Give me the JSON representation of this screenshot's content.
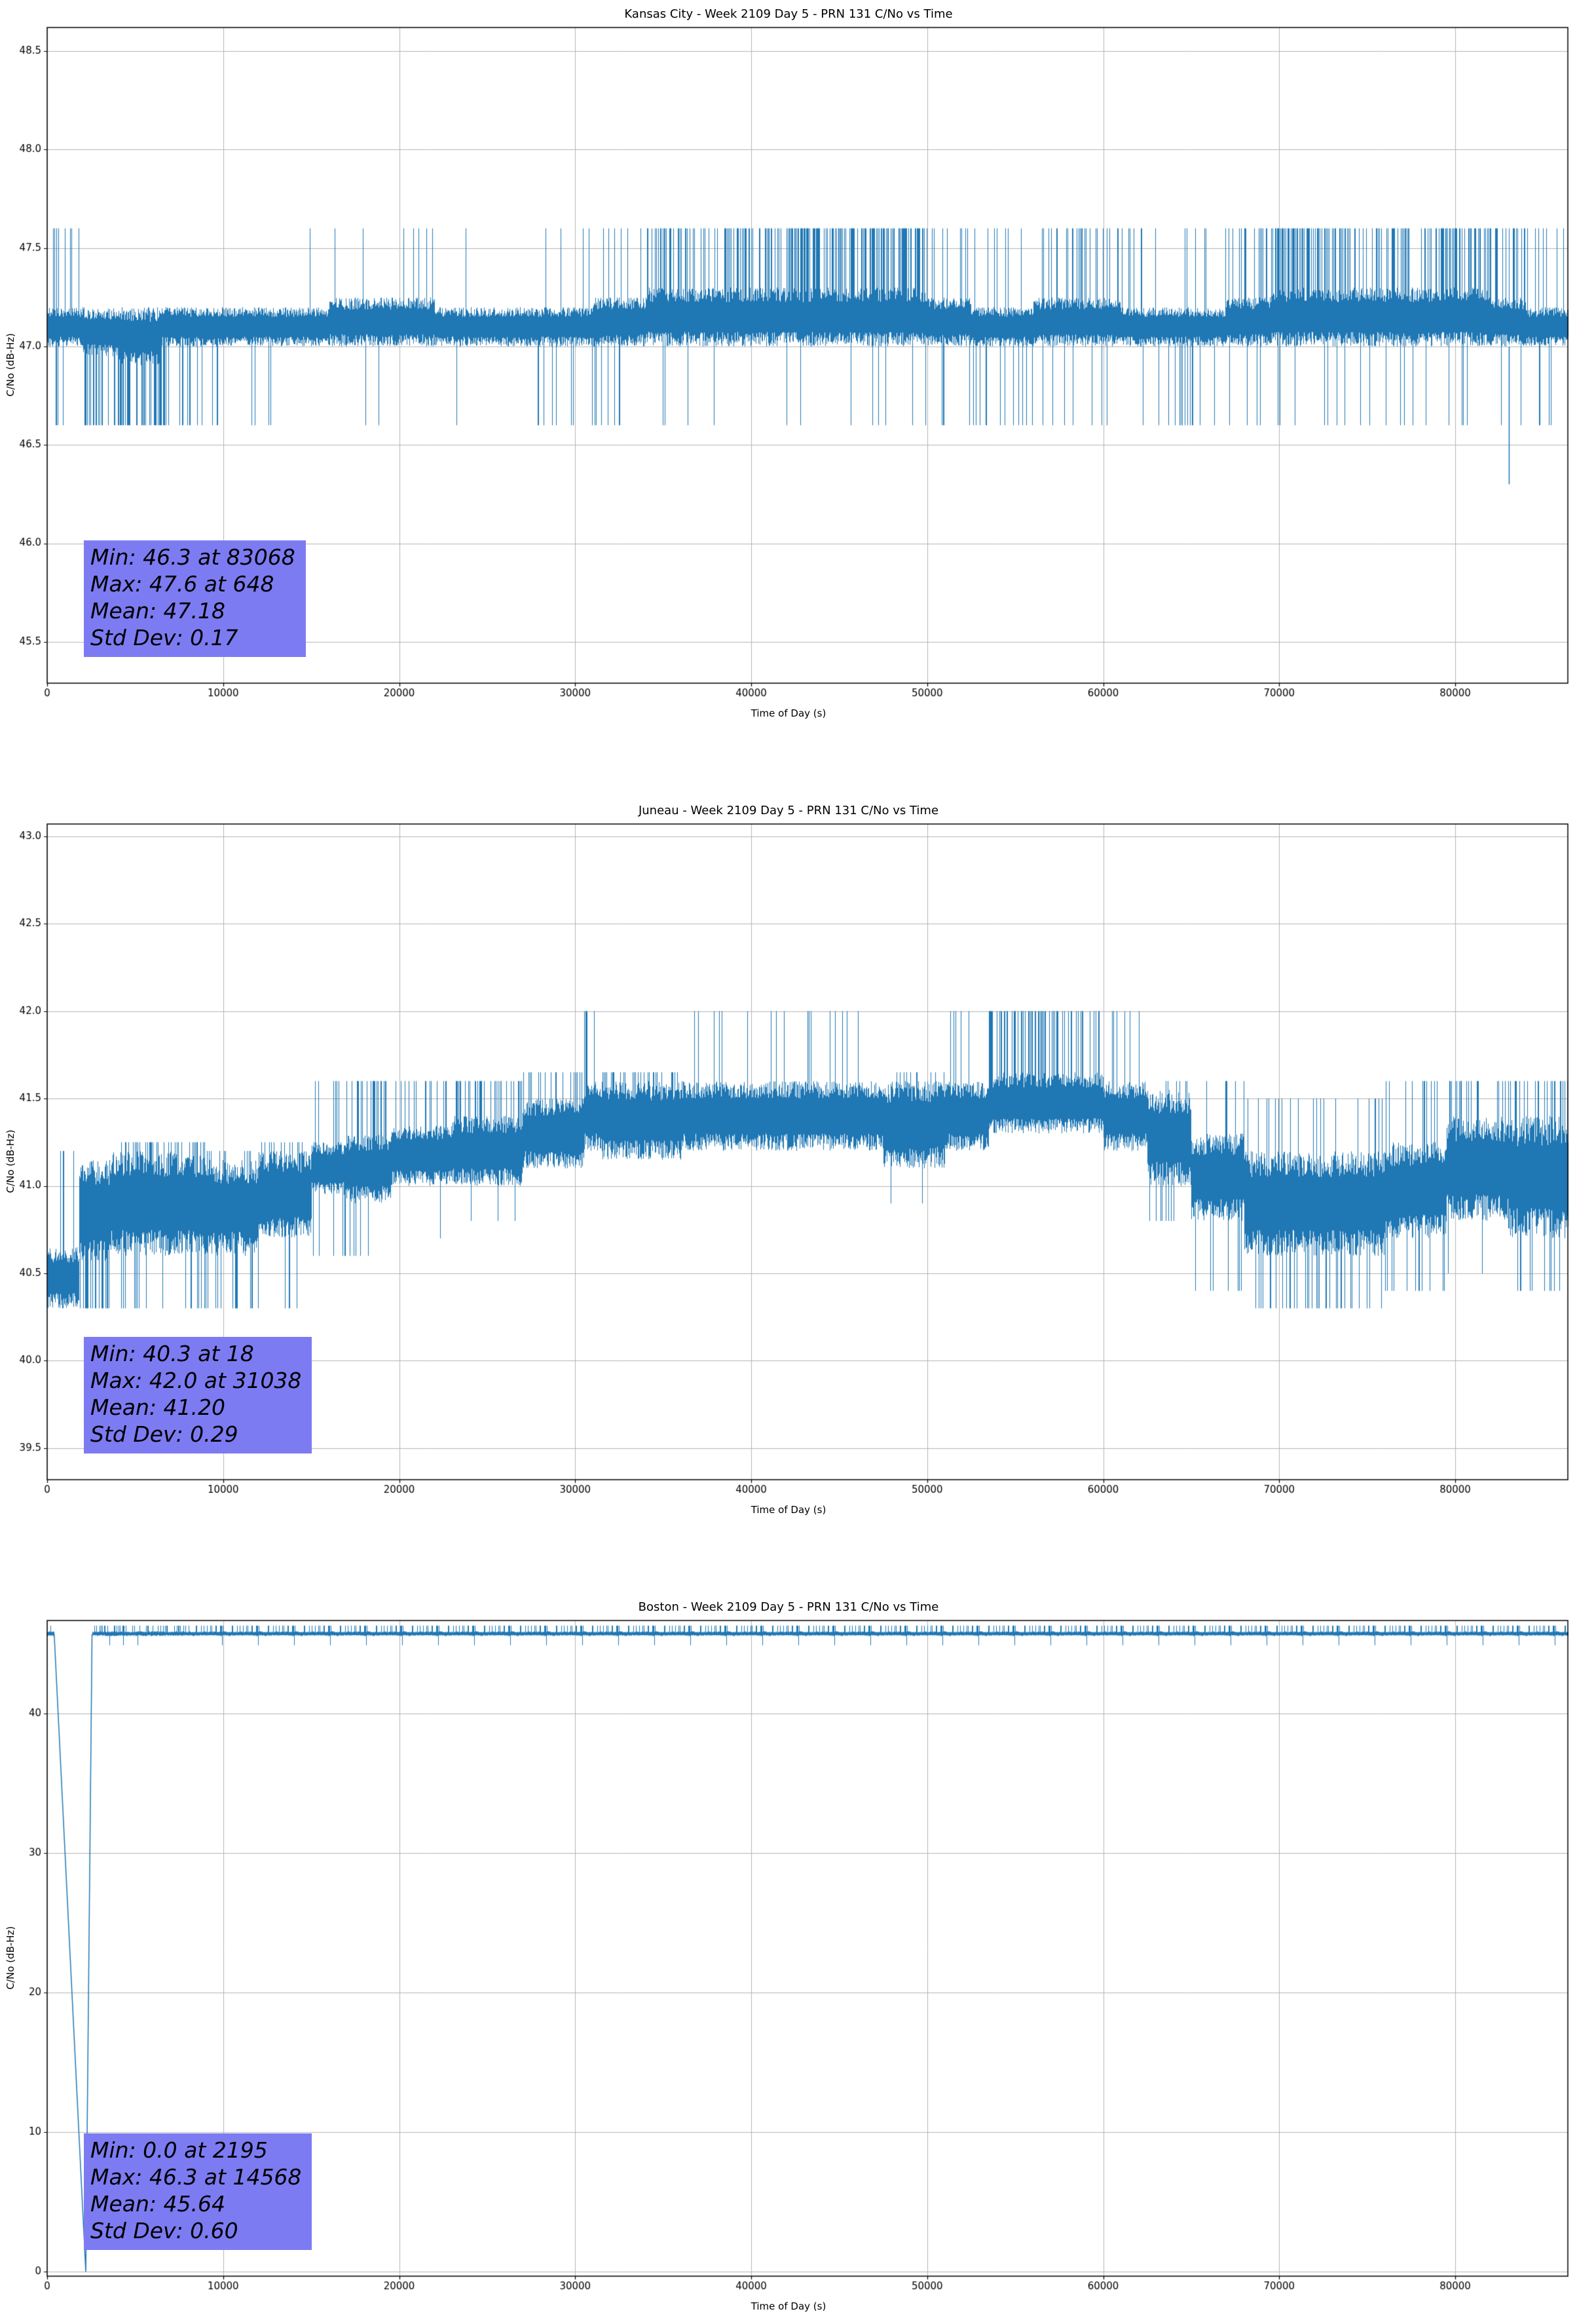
{
  "page": {
    "background": "#ffffff"
  },
  "bands_format": "[x_start, x_end, base_lo, base_hi, spike_up_value, spike_up_prob, spike_down_value, spike_down_prob]",
  "chart_data": [
    {
      "type": "line",
      "station": "Kansas City",
      "title": "Kansas City - Week 2109 Day 5 - PRN 131 C/No vs Time",
      "xlabel": "Time of Day (s)",
      "ylabel": "C/No (dB-Hz)",
      "line_color": "#1f77b4",
      "grid_color": "#b3b3b3",
      "xlim": [
        0,
        86400
      ],
      "ylim": [
        45.29,
        48.62
      ],
      "xticks": [
        0,
        10000,
        20000,
        30000,
        40000,
        50000,
        60000,
        70000,
        80000
      ],
      "xtick_labels": [
        "0",
        "10000",
        "20000",
        "30000",
        "40000",
        "50000",
        "60000",
        "70000",
        "80000"
      ],
      "yticks": [
        45.5,
        46.0,
        46.5,
        47.0,
        47.5,
        48.0,
        48.5
      ],
      "ytick_labels": [
        "45.5",
        "46.0",
        "46.5",
        "47.0",
        "47.5",
        "48.0",
        "48.5"
      ],
      "stats": {
        "min": 46.3,
        "min_at_s": 83068,
        "max": 47.6,
        "max_at_s": 648,
        "mean": 47.18,
        "std_dev": 0.17
      },
      "annotation": {
        "bg": "#7d7bf2",
        "lines": [
          "Min: 46.3 at 83068",
          "Max: 47.6 at 648",
          "Mean: 47.18",
          "Std Dev: 0.17"
        ]
      },
      "seed": 11,
      "bands": [
        [
          0,
          700,
          47.0,
          47.2,
          47.6,
          0.25,
          46.6,
          0.05
        ],
        [
          700,
          2000,
          47.0,
          47.2,
          47.6,
          0.1,
          46.6,
          0.08
        ],
        [
          2000,
          4000,
          46.95,
          47.2,
          null,
          0,
          46.6,
          0.25
        ],
        [
          4000,
          6500,
          46.9,
          47.2,
          null,
          0,
          46.6,
          0.4
        ],
        [
          6500,
          9000,
          47.0,
          47.2,
          null,
          0,
          46.6,
          0.25
        ],
        [
          9000,
          12000,
          47.0,
          47.2,
          47.6,
          0.02,
          46.6,
          0.1
        ],
        [
          12000,
          16000,
          47.0,
          47.2,
          47.6,
          0.02,
          46.6,
          0.02
        ],
        [
          16000,
          20000,
          47.0,
          47.25,
          47.6,
          0.03,
          46.6,
          0.04
        ],
        [
          20000,
          22000,
          47.0,
          47.25,
          47.6,
          0.12,
          46.6,
          0.02
        ],
        [
          22000,
          28000,
          47.0,
          47.2,
          47.6,
          0.01,
          46.6,
          0.02
        ],
        [
          28000,
          31000,
          47.0,
          47.2,
          47.6,
          0.02,
          46.6,
          0.08
        ],
        [
          31000,
          34000,
          47.0,
          47.25,
          47.6,
          0.08,
          46.6,
          0.1
        ],
        [
          34000,
          38000,
          47.0,
          47.3,
          47.6,
          0.3,
          46.6,
          0.02
        ],
        [
          38000,
          42000,
          47.0,
          47.3,
          47.6,
          0.35,
          46.6,
          0.02
        ],
        [
          42000,
          47000,
          47.0,
          47.3,
          47.6,
          0.5,
          46.6,
          0.02
        ],
        [
          47000,
          50000,
          47.0,
          47.3,
          47.6,
          0.45,
          46.6,
          0.03
        ],
        [
          50000,
          52500,
          47.0,
          47.25,
          47.6,
          0.15,
          46.6,
          0.08
        ],
        [
          52500,
          56000,
          47.0,
          47.2,
          47.6,
          0.05,
          46.6,
          0.12
        ],
        [
          56000,
          58500,
          47.0,
          47.25,
          47.6,
          0.2,
          46.6,
          0.05
        ],
        [
          58500,
          61000,
          47.0,
          47.25,
          47.6,
          0.25,
          46.6,
          0.03
        ],
        [
          61000,
          64000,
          47.0,
          47.2,
          47.6,
          0.1,
          46.6,
          0.06
        ],
        [
          64000,
          67000,
          47.0,
          47.2,
          47.6,
          0.05,
          46.6,
          0.1
        ],
        [
          67000,
          69500,
          47.0,
          47.25,
          47.6,
          0.15,
          46.6,
          0.03
        ],
        [
          69500,
          73000,
          47.0,
          47.3,
          47.6,
          0.4,
          46.6,
          0.02
        ],
        [
          73000,
          76000,
          47.0,
          47.3,
          47.6,
          0.35,
          46.6,
          0.03
        ],
        [
          76000,
          79000,
          47.0,
          47.3,
          47.6,
          0.3,
          46.6,
          0.05
        ],
        [
          79000,
          82000,
          47.0,
          47.3,
          47.6,
          0.4,
          46.6,
          0.06
        ],
        [
          82000,
          84000,
          47.0,
          47.25,
          47.6,
          0.25,
          46.6,
          0.1
        ],
        [
          84000,
          86400,
          47.0,
          47.2,
          47.6,
          0.12,
          46.6,
          0.06
        ]
      ],
      "features": [
        {
          "type": "spike",
          "x": 83068,
          "y_from": 47.0,
          "y_to": 46.3
        }
      ]
    },
    {
      "type": "line",
      "station": "Juneau",
      "title": "Juneau - Week 2109 Day 5 - PRN 131 C/No vs Time",
      "xlabel": "Time of Day (s)",
      "ylabel": "C/No (dB-Hz)",
      "line_color": "#1f77b4",
      "grid_color": "#b3b3b3",
      "xlim": [
        0,
        86400
      ],
      "ylim": [
        39.32,
        43.07
      ],
      "xticks": [
        0,
        10000,
        20000,
        30000,
        40000,
        50000,
        60000,
        70000,
        80000
      ],
      "xtick_labels": [
        "0",
        "10000",
        "20000",
        "30000",
        "40000",
        "50000",
        "60000",
        "70000",
        "80000"
      ],
      "yticks": [
        39.5,
        40.0,
        40.5,
        41.0,
        41.5,
        42.0,
        42.5,
        43.0
      ],
      "ytick_labels": [
        "39.5",
        "40.0",
        "40.5",
        "41.0",
        "41.5",
        "42.0",
        "42.5",
        "43.0"
      ],
      "stats": {
        "min": 40.3,
        "min_at_s": 18,
        "max": 42.0,
        "max_at_s": 31038,
        "mean": 41.2,
        "std_dev": 0.29
      },
      "annotation": {
        "bg": "#7d7bf2",
        "lines": [
          "Min: 40.3 at 18",
          "Max: 42.0 at 31038",
          "Mean: 41.20",
          "Std Dev: 0.29"
        ]
      },
      "seed": 23,
      "bands": [
        [
          0,
          1800,
          40.3,
          40.65,
          41.2,
          0.15,
          null,
          0
        ],
        [
          1800,
          3500,
          40.55,
          41.15,
          null,
          0,
          40.3,
          0.3
        ],
        [
          3500,
          6000,
          40.6,
          41.2,
          41.25,
          0.15,
          40.3,
          0.12
        ],
        [
          6000,
          9000,
          40.6,
          41.2,
          41.25,
          0.2,
          40.3,
          0.1
        ],
        [
          9000,
          12000,
          40.6,
          41.15,
          41.2,
          0.1,
          40.3,
          0.1
        ],
        [
          12000,
          15000,
          40.7,
          41.2,
          41.25,
          0.1,
          40.3,
          0.06
        ],
        [
          15000,
          17000,
          40.95,
          41.25,
          41.6,
          0.08,
          40.6,
          0.12
        ],
        [
          17000,
          19500,
          40.9,
          41.3,
          41.6,
          0.25,
          40.6,
          0.05
        ],
        [
          19500,
          23000,
          41.0,
          41.35,
          41.6,
          0.2,
          40.7,
          0.04
        ],
        [
          23000,
          27000,
          41.0,
          41.4,
          41.6,
          0.25,
          40.8,
          0.03
        ],
        [
          27000,
          30500,
          41.1,
          41.5,
          41.65,
          0.3,
          null,
          0
        ],
        [
          30500,
          31500,
          41.2,
          41.6,
          42.0,
          0.2,
          null,
          0
        ],
        [
          31500,
          36000,
          41.15,
          41.6,
          41.65,
          0.2,
          null,
          0
        ],
        [
          36000,
          40000,
          41.2,
          41.6,
          42.0,
          0.02,
          null,
          0
        ],
        [
          40000,
          44000,
          41.2,
          41.6,
          42.0,
          0.06,
          null,
          0
        ],
        [
          44000,
          47500,
          41.2,
          41.6,
          42.0,
          0.05,
          null,
          0
        ],
        [
          47500,
          51000,
          41.1,
          41.6,
          41.65,
          0.1,
          40.9,
          0.03
        ],
        [
          51000,
          53500,
          41.2,
          41.6,
          42.0,
          0.08,
          null,
          0
        ],
        [
          53500,
          57000,
          41.3,
          41.65,
          42.0,
          0.3,
          null,
          0
        ],
        [
          57000,
          60000,
          41.3,
          41.65,
          42.0,
          0.25,
          null,
          0
        ],
        [
          60000,
          62500,
          41.2,
          41.6,
          42.0,
          0.12,
          null,
          0
        ],
        [
          62500,
          65000,
          41.0,
          41.55,
          41.6,
          0.08,
          40.8,
          0.05
        ],
        [
          65000,
          68000,
          40.8,
          41.3,
          41.6,
          0.05,
          40.4,
          0.12
        ],
        [
          68000,
          72000,
          40.6,
          41.2,
          41.5,
          0.08,
          40.3,
          0.15
        ],
        [
          72000,
          76000,
          40.6,
          41.2,
          41.5,
          0.1,
          40.3,
          0.12
        ],
        [
          76000,
          79500,
          40.7,
          41.25,
          41.6,
          0.12,
          40.4,
          0.1
        ],
        [
          79500,
          83000,
          40.8,
          41.4,
          41.6,
          0.18,
          40.5,
          0.08
        ],
        [
          83000,
          86400,
          40.7,
          41.4,
          41.6,
          0.2,
          40.4,
          0.08
        ]
      ],
      "features": []
    },
    {
      "type": "line",
      "station": "Boston",
      "title": "Boston - Week 2109 Day 5 - PRN 131 C/No vs Time",
      "xlabel": "Time of Day (s)",
      "ylabel": "C/No (dB-Hz)",
      "line_color": "#1f77b4",
      "grid_color": "#b3b3b3",
      "xlim": [
        0,
        86400
      ],
      "ylim": [
        -0.31,
        46.67
      ],
      "xticks": [
        0,
        10000,
        20000,
        30000,
        40000,
        50000,
        60000,
        70000,
        80000
      ],
      "xtick_labels": [
        "0",
        "10000",
        "20000",
        "30000",
        "40000",
        "50000",
        "60000",
        "70000",
        "80000"
      ],
      "yticks": [
        0,
        10,
        20,
        30,
        40
      ],
      "ytick_labels": [
        "0",
        "10",
        "20",
        "30",
        "40"
      ],
      "stats": {
        "min": 0.0,
        "min_at_s": 2195,
        "max": 46.3,
        "max_at_s": 14568,
        "mean": 45.64,
        "std_dev": 0.6
      },
      "annotation": {
        "bg": "#7d7bf2",
        "lines": [
          "Min: 0.0 at 2195",
          "Max: 46.3 at 14568",
          "Mean: 45.64",
          "Std Dev: 0.60"
        ]
      },
      "seed": 37,
      "bands": [
        [
          0,
          400,
          45.55,
          45.9,
          46.3,
          0.3,
          null,
          0
        ],
        [
          2550,
          86400,
          45.55,
          45.9,
          46.3,
          0.3,
          44.9,
          0.03
        ]
      ],
      "features": [
        {
          "type": "polyline",
          "points": [
            [
              400,
              45.7
            ],
            [
              2195,
              0.0
            ],
            [
              2550,
              45.7
            ]
          ]
        }
      ]
    }
  ]
}
